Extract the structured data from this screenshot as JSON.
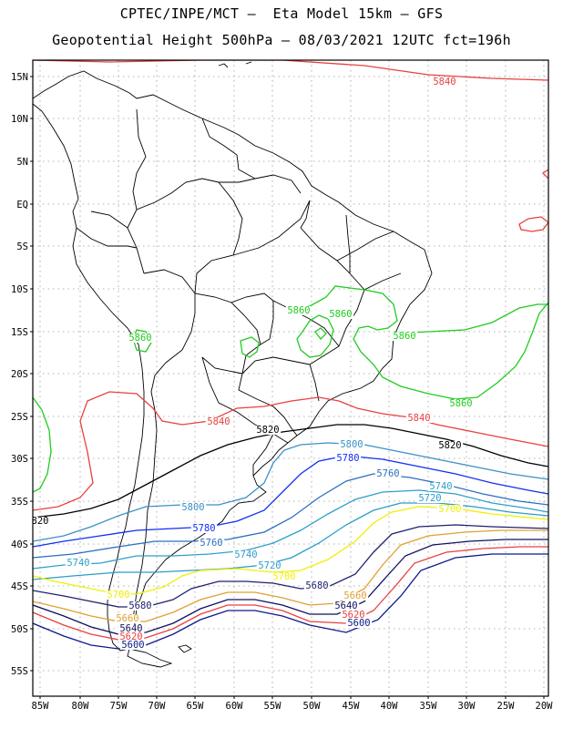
{
  "header": {
    "line1": "CPTEC/INPE/MCT –  Eta Model 15km – GFS",
    "line2": "Geopotential Height 500hPa – 08/03/2021 12UTC fct=196h"
  },
  "axes": {
    "lat_ticks": [
      "15N",
      "10N",
      "5N",
      "EQ",
      "5S",
      "10S",
      "15S",
      "20S",
      "25S",
      "30S",
      "35S",
      "40S",
      "45S",
      "50S",
      "55S"
    ],
    "lon_ticks": [
      "85W",
      "80W",
      "75W",
      "70W",
      "65W",
      "60W",
      "55W",
      "50W",
      "45W",
      "40W",
      "35W",
      "30W",
      "25W",
      "20W"
    ]
  },
  "colors": {
    "c5580": "#00007a",
    "c5600": "#0a1a8a",
    "c5620": "#e84040",
    "c5640": "#101060",
    "c5660": "#e0a030",
    "c5680": "#202070",
    "c5700": "#f0f000",
    "c5720": "#2c9cc8",
    "c5740": "#30a0c8",
    "c5760": "#2a70c0",
    "c5780": "#1030f0",
    "c5800": "#3a90c8",
    "c5820": "#000000",
    "c5840": "#e84040",
    "c5860": "#20cc20",
    "coast": "#000000"
  },
  "contour_labels": [
    {
      "text": "5840",
      "color": "#e84040"
    },
    {
      "text": "5840",
      "color": "#e84040"
    },
    {
      "text": "5840",
      "color": "#e84040"
    },
    {
      "text": "5820",
      "color": "#000000"
    },
    {
      "text": "5820",
      "color": "#000000"
    },
    {
      "text": "820",
      "color": "#000000"
    },
    {
      "text": "5800",
      "color": "#3a90c8"
    },
    {
      "text": "5800",
      "color": "#3a90c8"
    },
    {
      "text": "5780",
      "color": "#1030f0"
    },
    {
      "text": "5780",
      "color": "#1030f0"
    },
    {
      "text": "5760",
      "color": "#2a70c0"
    },
    {
      "text": "5760",
      "color": "#2a70c0"
    },
    {
      "text": "5740",
      "color": "#30a0c8"
    },
    {
      "text": "5740",
      "color": "#30a0c8"
    },
    {
      "text": "5740",
      "color": "#30a0c8"
    },
    {
      "text": "5720",
      "color": "#2c9cc8"
    },
    {
      "text": "5720",
      "color": "#2c9cc8"
    },
    {
      "text": "5700",
      "color": "#f0f000"
    },
    {
      "text": "5700",
      "color": "#f0f000"
    },
    {
      "text": "5700",
      "color": "#f0f000"
    },
    {
      "text": "5680",
      "color": "#202070"
    },
    {
      "text": "5680",
      "color": "#202070"
    },
    {
      "text": "5660",
      "color": "#e0a030"
    },
    {
      "text": "5660",
      "color": "#e0a030"
    },
    {
      "text": "5640",
      "color": "#101060"
    },
    {
      "text": "5640",
      "color": "#101060"
    },
    {
      "text": "5620",
      "color": "#e84040"
    },
    {
      "text": "5620",
      "color": "#e84040"
    },
    {
      "text": "5600",
      "color": "#0a1a8a"
    },
    {
      "text": "5600",
      "color": "#0a1a8a"
    },
    {
      "text": "5860",
      "color": "#20cc20"
    },
    {
      "text": "5860",
      "color": "#20cc20"
    },
    {
      "text": "5860",
      "color": "#20cc20"
    },
    {
      "text": "5860",
      "color": "#20cc20"
    },
    {
      "text": "5860",
      "color": "#20cc20"
    }
  ]
}
